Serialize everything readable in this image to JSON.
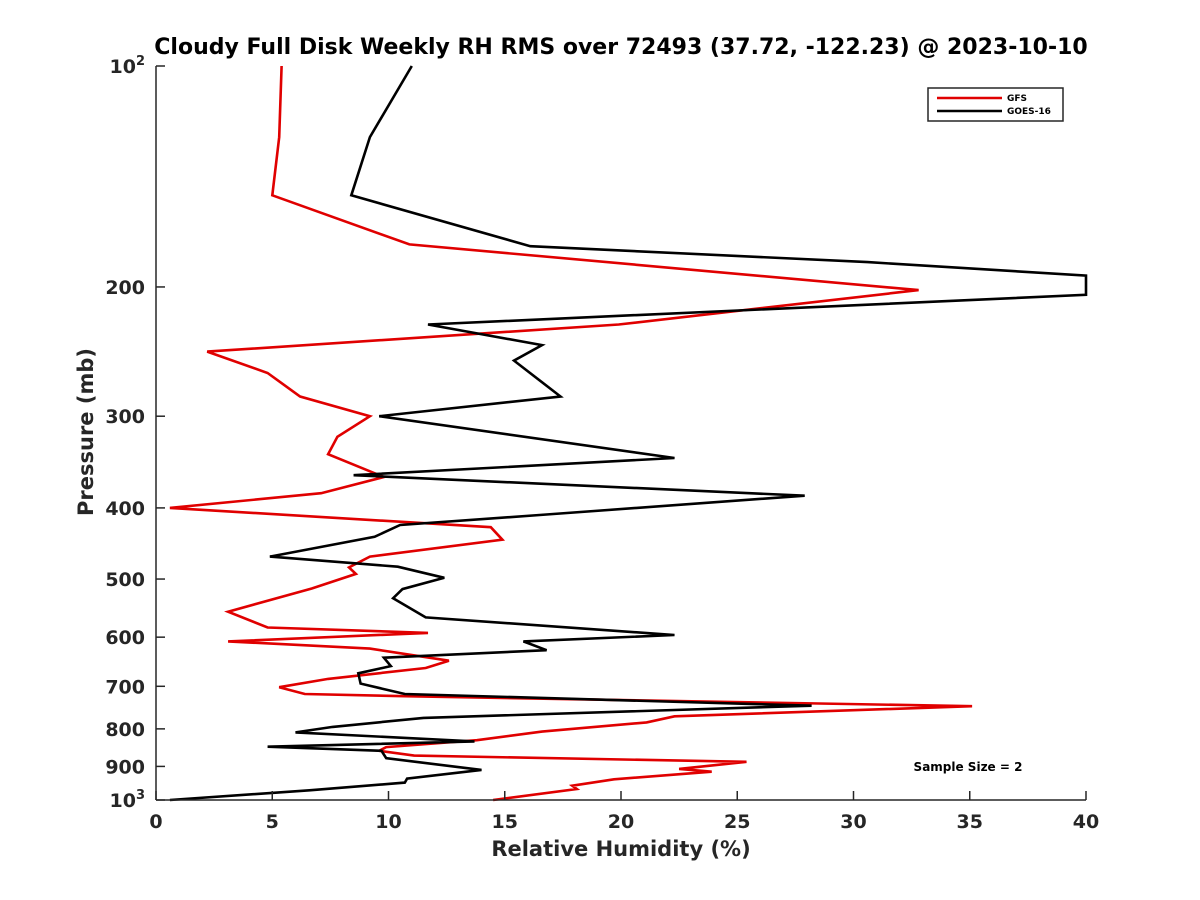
{
  "chart_data": {
    "type": "line",
    "title": "Cloudy Full Disk Weekly RH RMS over 72493 (37.72, -122.23) @ 2023-10-10",
    "xlabel": "Relative Humidity (%)",
    "ylabel": "Pressure (mb)",
    "xlim": [
      0,
      40
    ],
    "ylim": [
      100,
      1000
    ],
    "yscale": "log",
    "y_reversed": true,
    "grid": false,
    "legend_position": "top-right",
    "x_ticks": [
      "0",
      "5",
      "10",
      "15",
      "20",
      "25",
      "30",
      "35",
      "40"
    ],
    "y_ticks": [
      {
        "value": 100,
        "base": "10",
        "exp": "2"
      },
      {
        "value": 200,
        "label": "200"
      },
      {
        "value": 300,
        "label": "300"
      },
      {
        "value": 400,
        "label": "400"
      },
      {
        "value": 500,
        "label": "500"
      },
      {
        "value": 600,
        "label": "600"
      },
      {
        "value": 700,
        "label": "700"
      },
      {
        "value": 800,
        "label": "800"
      },
      {
        "value": 900,
        "label": "900"
      },
      {
        "value": 1000,
        "base": "10",
        "exp": "3"
      }
    ],
    "annotation": "Sample Size = 2",
    "series": [
      {
        "name": "GFS",
        "color": "#e00000",
        "points": [
          [
            5.4,
            100
          ],
          [
            5.3,
            125
          ],
          [
            5.0,
            150
          ],
          [
            10.9,
            175
          ],
          [
            32.8,
            202
          ],
          [
            19.9,
            225
          ],
          [
            2.2,
            245
          ],
          [
            4.8,
            262
          ],
          [
            6.2,
            282
          ],
          [
            9.2,
            300
          ],
          [
            7.8,
            320
          ],
          [
            7.4,
            338
          ],
          [
            9.8,
            363
          ],
          [
            7.1,
            382
          ],
          [
            0.6,
            400
          ],
          [
            14.4,
            425
          ],
          [
            14.9,
            442
          ],
          [
            9.2,
            466
          ],
          [
            8.3,
            482
          ],
          [
            8.6,
            492
          ],
          [
            6.7,
            515
          ],
          [
            3.1,
            554
          ],
          [
            4.8,
            582
          ],
          [
            11.7,
            592
          ],
          [
            3.1,
            608
          ],
          [
            9.2,
            622
          ],
          [
            12.6,
            646
          ],
          [
            11.6,
            661
          ],
          [
            7.4,
            684
          ],
          [
            5.3,
            702
          ],
          [
            6.4,
            717
          ],
          [
            10.7,
            722
          ],
          [
            35.1,
            745
          ],
          [
            22.3,
            769
          ],
          [
            21.1,
            784
          ],
          [
            16.6,
            807
          ],
          [
            13.8,
            829
          ],
          [
            9.9,
            847
          ],
          [
            9.6,
            857
          ],
          [
            11.1,
            870
          ],
          [
            25.4,
            887
          ],
          [
            22.5,
            907
          ],
          [
            23.9,
            915
          ],
          [
            19.7,
            937
          ],
          [
            17.9,
            956
          ],
          [
            18.1,
            966
          ],
          [
            14.5,
            1000
          ]
        ]
      },
      {
        "name": "GOES-16",
        "color": "#000000",
        "points": [
          [
            11.0,
            100
          ],
          [
            9.2,
            125
          ],
          [
            8.4,
            150
          ],
          [
            16.1,
            176
          ],
          [
            30.6,
            185
          ],
          [
            40.0,
            193
          ],
          [
            40.0,
            205
          ],
          [
            11.7,
            225
          ],
          [
            16.6,
            240
          ],
          [
            15.4,
            252
          ],
          [
            17.4,
            282
          ],
          [
            9.6,
            300
          ],
          [
            22.3,
            342
          ],
          [
            8.5,
            361
          ],
          [
            27.9,
            385
          ],
          [
            16.5,
            409
          ],
          [
            10.5,
            422
          ],
          [
            9.4,
            438
          ],
          [
            4.9,
            466
          ],
          [
            10.4,
            481
          ],
          [
            12.4,
            498
          ],
          [
            10.6,
            516
          ],
          [
            10.2,
            531
          ],
          [
            11.6,
            564
          ],
          [
            22.3,
            596
          ],
          [
            15.8,
            608
          ],
          [
            16.8,
            625
          ],
          [
            9.8,
            640
          ],
          [
            10.1,
            657
          ],
          [
            8.7,
            672
          ],
          [
            8.8,
            694
          ],
          [
            10.7,
            717
          ],
          [
            28.2,
            744
          ],
          [
            11.5,
            773
          ],
          [
            7.6,
            795
          ],
          [
            6.0,
            809
          ],
          [
            13.7,
            832
          ],
          [
            4.8,
            846
          ],
          [
            9.7,
            857
          ],
          [
            9.9,
            877
          ],
          [
            14.0,
            910
          ],
          [
            10.8,
            935
          ],
          [
            10.7,
            947
          ],
          [
            6.6,
            970
          ],
          [
            0.6,
            1000
          ]
        ]
      }
    ]
  }
}
